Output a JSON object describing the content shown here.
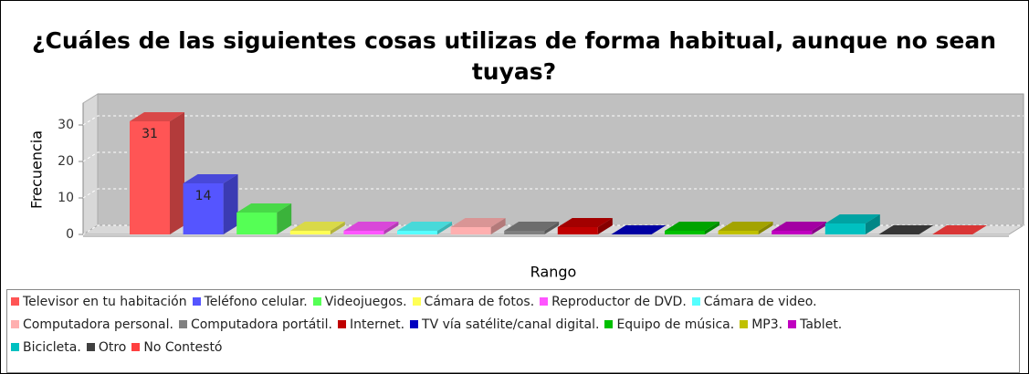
{
  "chart_data": {
    "type": "bar3d",
    "title": "¿Cuáles de las siguientes cosas utilizas de forma habitual, aunque no sean tuyas?",
    "x_label": "Rango",
    "y_label": "Frecuencia",
    "categories": [
      "Televisor en tu habitación",
      "Teléfono celular.",
      "Videojuegos.",
      "Cámara de fotos.",
      "Reproductor de DVD.",
      "Cámara de video.",
      "Computadora personal.",
      "Computadora portátil.",
      "Internet.",
      "TV vía satélite/canal digital.",
      "Equipo de música.",
      "MP3.",
      "Tablet.",
      "Bicicleta.",
      "Otro",
      "No Contestó"
    ],
    "values": [
      31,
      14,
      6,
      1,
      1,
      1,
      2,
      1,
      2,
      0,
      1,
      1,
      1,
      3,
      0,
      0
    ],
    "labeled": [
      true,
      true,
      false,
      false,
      false,
      false,
      false,
      false,
      false,
      false,
      false,
      false,
      false,
      false,
      false,
      false
    ],
    "colors": [
      "#ff5555",
      "#5555ff",
      "#55ff55",
      "#ffff55",
      "#ff55ff",
      "#55ffff",
      "#ffafaf",
      "#808080",
      "#c00000",
      "#0000c0",
      "#00c000",
      "#c0c000",
      "#c000c0",
      "#00c0c0",
      "#404040",
      "#ff4040"
    ],
    "ylim": [
      0,
      36
    ],
    "yticks": [
      0,
      10,
      20,
      30
    ],
    "grid": true
  }
}
